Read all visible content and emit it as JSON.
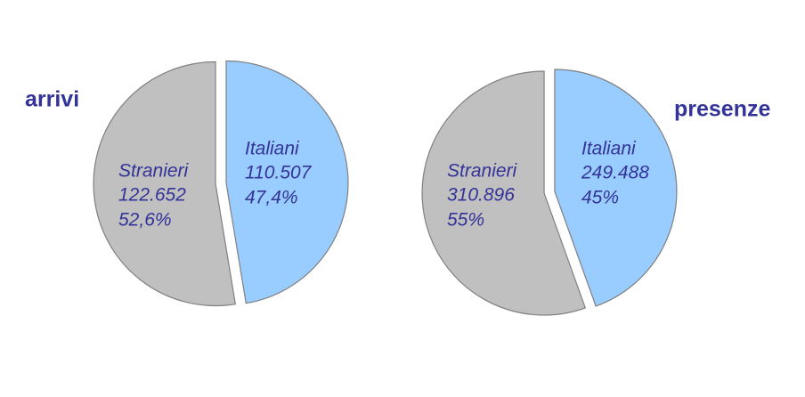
{
  "chart_data": [
    {
      "type": "pie",
      "title": "arrivi",
      "categories": [
        "Italiani",
        "Stranieri"
      ],
      "values": [
        110507,
        122652
      ],
      "value_labels": [
        "110.507",
        "122.652"
      ],
      "percents": [
        47.4,
        52.6
      ],
      "percent_labels": [
        "47,4%",
        "52,6%"
      ],
      "colors": [
        "#99ccff",
        "#c0c0c0"
      ]
    },
    {
      "type": "pie",
      "title": "presenze",
      "categories": [
        "Italiani",
        "Stranieri"
      ],
      "values": [
        249488,
        310896
      ],
      "value_labels": [
        "249.488",
        "310.896"
      ],
      "percents": [
        45,
        55
      ],
      "percent_labels": [
        "45%",
        "55%"
      ],
      "colors": [
        "#99ccff",
        "#c0c0c0"
      ]
    }
  ]
}
